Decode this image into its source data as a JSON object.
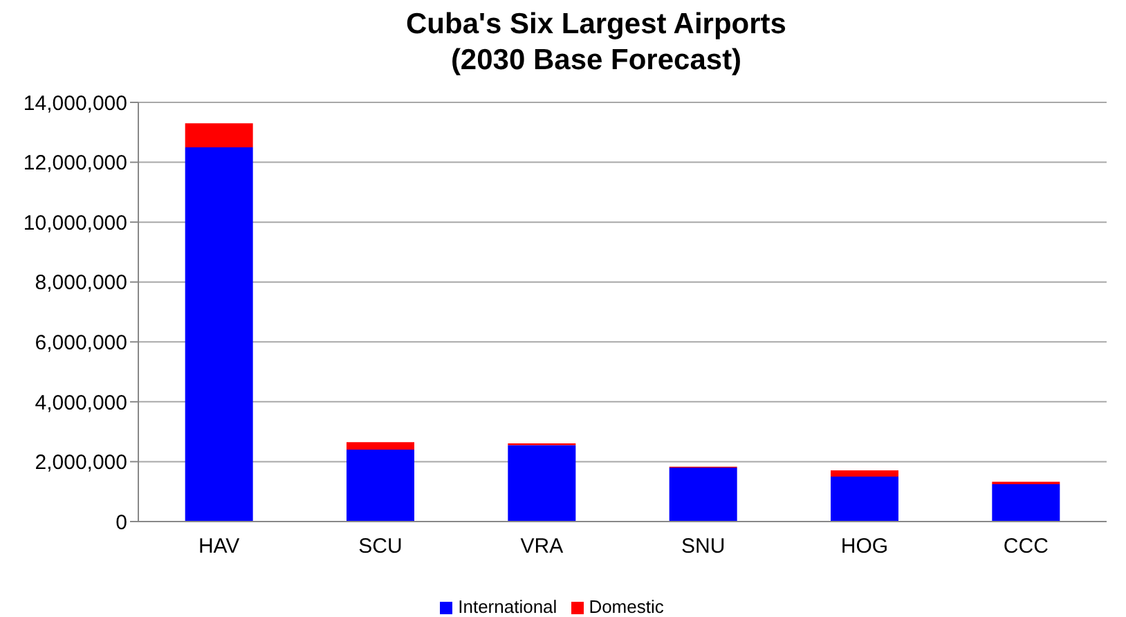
{
  "chart_data": {
    "type": "bar",
    "title": "Cuba's Six Largest Airports\n(2030 Base Forecast)",
    "categories": [
      "HAV",
      "SCU",
      "VRA",
      "SNU",
      "HOG",
      "CCC"
    ],
    "series": [
      {
        "name": "International",
        "color": "#0000ff",
        "values": [
          12500000,
          2400000,
          2550000,
          1800000,
          1500000,
          1250000
        ]
      },
      {
        "name": "Domestic",
        "color": "#ff0000",
        "values": [
          800000,
          250000,
          60000,
          30000,
          210000,
          80000
        ]
      }
    ],
    "stacked": true,
    "ylim": [
      0,
      14000000
    ],
    "yticks": [
      0,
      {
        "value": 2000000,
        "label": "2,000,000"
      },
      {
        "value": 4000000,
        "label": "4,000,000"
      },
      {
        "value": 6000000,
        "label": "6,000,000"
      },
      {
        "value": 8000000,
        "label": "8,000,000"
      },
      {
        "value": 10000000,
        "label": "10,000,000"
      },
      {
        "value": 12000000,
        "label": "12,000,000"
      },
      {
        "value": 14000000,
        "label": "14,000,000"
      }
    ],
    "grid": "y",
    "legend": "bottom"
  }
}
